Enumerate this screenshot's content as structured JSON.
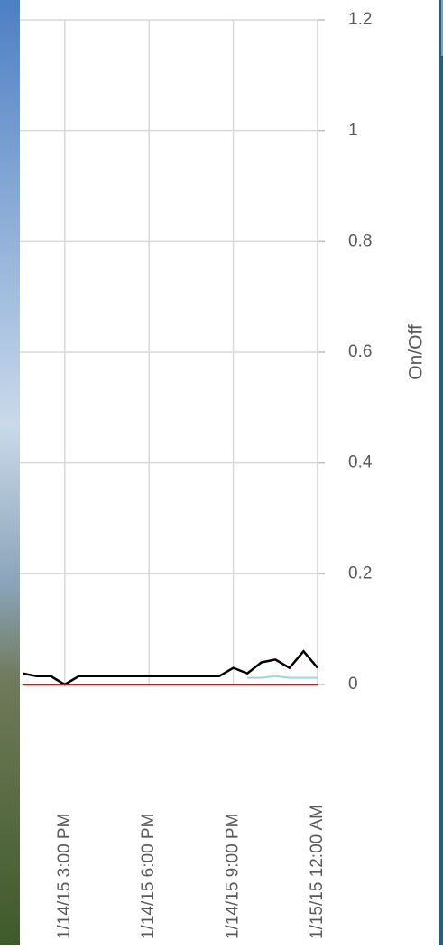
{
  "chart_data": {
    "type": "line",
    "y_label": "On/Off",
    "x": [
      "2015-01-14T13:30",
      "2015-01-14T14:00",
      "2015-01-14T14:30",
      "2015-01-14T15:00",
      "2015-01-14T15:30",
      "2015-01-14T16:00",
      "2015-01-14T16:30",
      "2015-01-14T17:00",
      "2015-01-14T17:30",
      "2015-01-14T18:00",
      "2015-01-14T18:30",
      "2015-01-14T19:00",
      "2015-01-14T19:30",
      "2015-01-14T20:00",
      "2015-01-14T20:30",
      "2015-01-14T21:00",
      "2015-01-14T21:30",
      "2015-01-14T22:00",
      "2015-01-14T22:30",
      "2015-01-14T23:00",
      "2015-01-14T23:30",
      "2015-01-15T00:00"
    ],
    "series": [
      {
        "color": "#000000",
        "values": [
          0.02,
          0.015,
          0.015,
          0,
          0.015,
          0.015,
          0.015,
          0.015,
          0.015,
          0.015,
          0.015,
          0.015,
          0.015,
          0.015,
          0.015,
          0.03,
          0.02,
          0.04,
          0.045,
          0.03,
          0.06,
          0.03
        ]
      },
      {
        "color": "#9dd3e8",
        "values": [
          null,
          null,
          null,
          null,
          null,
          null,
          null,
          null,
          null,
          null,
          null,
          null,
          null,
          null,
          null,
          null,
          0.012,
          0.012,
          0.015,
          0.012,
          0.012,
          0.012
        ]
      },
      {
        "color": "#ff0000",
        "values": [
          0,
          0,
          0,
          0,
          0,
          0,
          0,
          0,
          0,
          0,
          0,
          0,
          0,
          0,
          0,
          0,
          0,
          0,
          0,
          0,
          0,
          0
        ]
      }
    ],
    "xlim": [
      "2015-01-14T13:24",
      "2015-01-15T00:00"
    ],
    "xticks": [
      {
        "value": "2015-01-14T15:00",
        "label": "1/14/15  3:00 PM"
      },
      {
        "value": "2015-01-14T18:00",
        "label": "1/14/15  6:00 PM"
      },
      {
        "value": "2015-01-14T21:00",
        "label": "1/14/15  9:00 PM"
      },
      {
        "value": "2015-01-15T00:00",
        "label": "1/15/15  12:00 AM"
      }
    ],
    "ylim": [
      0,
      1.2
    ],
    "yticks": [
      0,
      0.2,
      0.4,
      0.6,
      0.8,
      1,
      1.2
    ],
    "grid": true
  }
}
